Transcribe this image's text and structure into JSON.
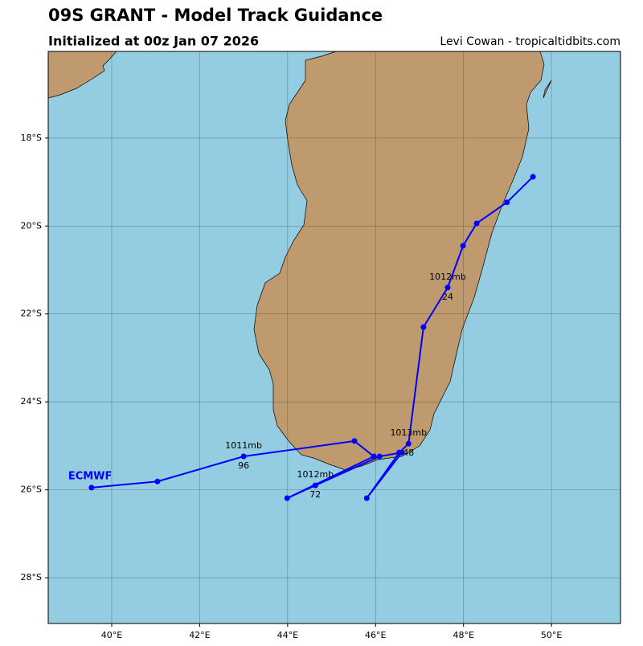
{
  "chart_data": {
    "type": "track",
    "title": "09S GRANT - Model Track Guidance",
    "subtitle": "Initialized at 00z Jan 07 2026",
    "credit": "Levi Cowan - tropicaltidbits.com",
    "xlim": [
      38.556,
      51.57
    ],
    "ylim": [
      -29.04,
      -16.03
    ],
    "xticks": [
      {
        "value": 40,
        "label": "40°E"
      },
      {
        "value": 42,
        "label": "42°E"
      },
      {
        "value": 44,
        "label": "44°E"
      },
      {
        "value": 46,
        "label": "46°E"
      },
      {
        "value": 48,
        "label": "48°E"
      },
      {
        "value": 50,
        "label": "50°E"
      }
    ],
    "yticks": [
      {
        "value": -18,
        "label": "18°S"
      },
      {
        "value": -20,
        "label": "20°S"
      },
      {
        "value": -22,
        "label": "22°S"
      },
      {
        "value": -24,
        "label": "24°S"
      },
      {
        "value": -26,
        "label": "26°S"
      },
      {
        "value": -28,
        "label": "28°S"
      }
    ],
    "grid": true,
    "series": [
      {
        "name": "ECMWF",
        "color": "#0000ff",
        "x": [
          49.58,
          48.99,
          48.3,
          47.99,
          47.64,
          47.09,
          46.75,
          46.54,
          45.8,
          46.6,
          46.09,
          44.63,
          43.99,
          45.96,
          45.52,
          43.0,
          41.04,
          39.54
        ],
        "y": [
          -18.88,
          -19.46,
          -19.94,
          -20.45,
          -21.4,
          -22.3,
          -24.95,
          -25.15,
          -26.19,
          -25.15,
          -25.24,
          -25.9,
          -26.19,
          -25.24,
          -24.89,
          -25.24,
          -25.81,
          -25.95
        ],
        "pressure_labels": [
          null,
          null,
          null,
          null,
          "1012mb",
          null,
          "1013mb",
          null,
          null,
          null,
          null,
          "1012mb",
          null,
          null,
          null,
          "1011mb",
          null,
          null
        ],
        "hour_labels": [
          null,
          null,
          null,
          null,
          24,
          null,
          48,
          null,
          null,
          null,
          null,
          72,
          null,
          null,
          null,
          96,
          null,
          null
        ]
      }
    ]
  }
}
